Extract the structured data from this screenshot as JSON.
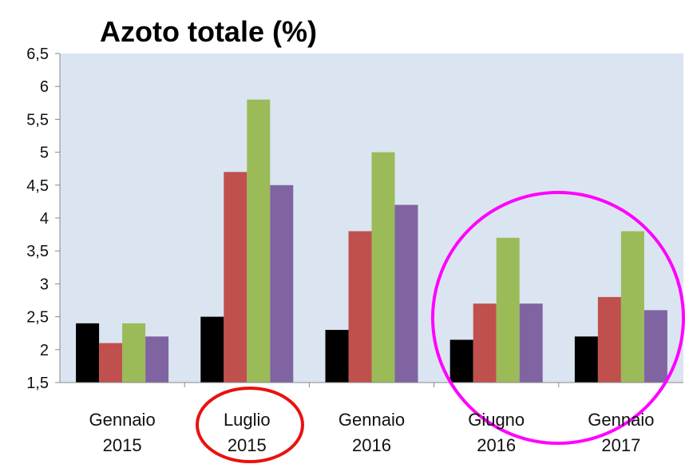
{
  "chart_data": {
    "type": "bar",
    "title": "Azoto totale (%)",
    "categories": [
      "Gennaio\n2015",
      "Luglio\n2015",
      "Gennaio\n2016",
      "Giugno\n2016",
      "Gennaio\n2017"
    ],
    "series": [
      {
        "color": "#000000",
        "values": [
          2.4,
          2.5,
          2.3,
          2.15,
          2.2
        ]
      },
      {
        "color": "#c0504d",
        "values": [
          2.1,
          4.7,
          3.8,
          2.7,
          2.8
        ]
      },
      {
        "color": "#9bbb59",
        "values": [
          2.4,
          5.8,
          5.0,
          3.7,
          3.8
        ]
      },
      {
        "color": "#8064a2",
        "values": [
          2.2,
          4.5,
          4.2,
          2.7,
          2.6
        ]
      }
    ],
    "ylim": [
      1.5,
      6.5
    ],
    "yticks": [
      {
        "value": 1.5,
        "label": "1,5"
      },
      2,
      {
        "value": 2.5,
        "label": "2,5"
      },
      3,
      {
        "value": 3.5,
        "label": "3,5"
      },
      4,
      {
        "value": 4.5,
        "label": "4,5"
      },
      5,
      {
        "value": 5.5,
        "label": "5,5"
      },
      6,
      {
        "value": 6.5,
        "label": "6,5"
      }
    ]
  }
}
